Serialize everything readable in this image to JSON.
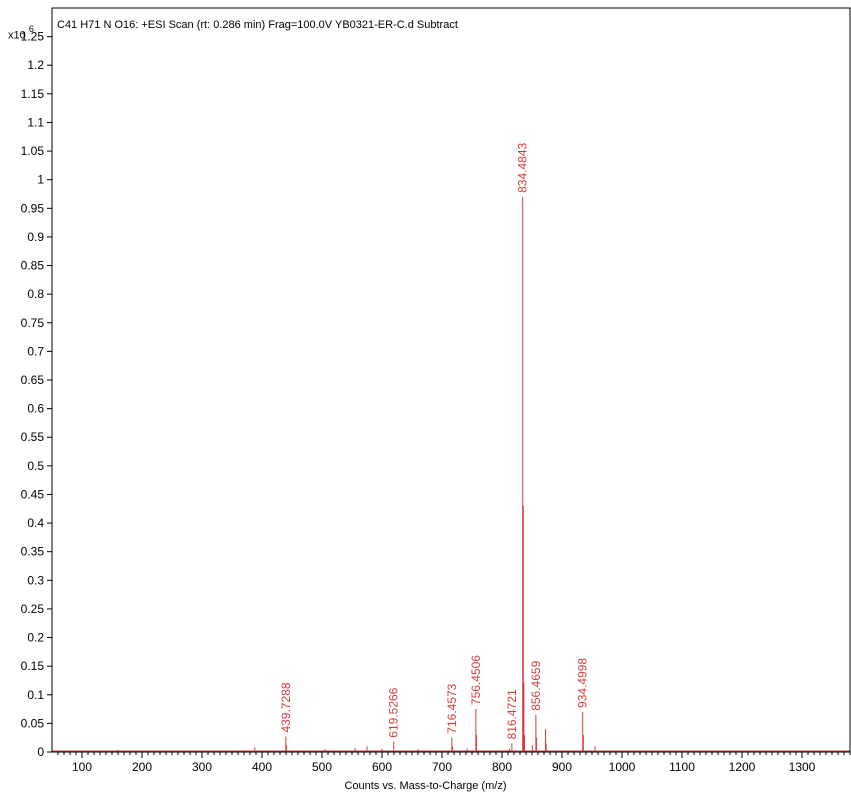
{
  "chart_data": {
    "type": "line",
    "title": "C41 H71 N O16: +ESI Scan (rt: 0.286 min) Frag=100.0V YB0321-ER-C.d  Subtract",
    "y_multiplier": {
      "base": "x10",
      "exponent": "6"
    },
    "xlabel": "Counts vs. Mass-to-Charge (m/z)",
    "ylabel": "",
    "xlim": [
      50,
      1380
    ],
    "ylim": [
      0,
      1.3
    ],
    "x_ticks": [
      100,
      200,
      300,
      400,
      500,
      600,
      700,
      800,
      900,
      1000,
      1100,
      1200,
      1300
    ],
    "y_ticks": [
      "0",
      "0.05",
      "0.1",
      "0.15",
      "0.2",
      "0.25",
      "0.3",
      "0.35",
      "0.4",
      "0.45",
      "0.5",
      "0.55",
      "0.6",
      "0.65",
      "0.7",
      "0.75",
      "0.8",
      "0.85",
      "0.9",
      "0.95",
      "1",
      "1.05",
      "1.1",
      "1.15",
      "1.2",
      "1.25"
    ],
    "y_tick_values": [
      0,
      0.05,
      0.1,
      0.15,
      0.2,
      0.25,
      0.3,
      0.35,
      0.4,
      0.45,
      0.5,
      0.55,
      0.6,
      0.65,
      0.7,
      0.75,
      0.8,
      0.85,
      0.9,
      0.95,
      1,
      1.05,
      1.1,
      1.15,
      1.2,
      1.25
    ],
    "grid": false,
    "series_color": "#d43c3c",
    "labeled_peaks": [
      {
        "mz": 439.7288,
        "intensity": 0.027,
        "label": "439.7288"
      },
      {
        "mz": 619.5266,
        "intensity": 0.018,
        "label": "619.5266"
      },
      {
        "mz": 716.4573,
        "intensity": 0.025,
        "label": "716.4573"
      },
      {
        "mz": 756.4506,
        "intensity": 0.075,
        "label": "756.4506"
      },
      {
        "mz": 816.4721,
        "intensity": 0.015,
        "label": "816.4721"
      },
      {
        "mz": 834.4843,
        "intensity": 0.97,
        "label": "834.4843"
      },
      {
        "mz": 856.4659,
        "intensity": 0.065,
        "label": "856.4659"
      },
      {
        "mz": 934.4998,
        "intensity": 0.07,
        "label": "934.4998"
      }
    ],
    "unlabeled_peaks": [
      {
        "mz": 835.49,
        "intensity": 0.43
      },
      {
        "mz": 836.49,
        "intensity": 0.12
      },
      {
        "mz": 837.5,
        "intensity": 0.03
      },
      {
        "mz": 757.45,
        "intensity": 0.03
      },
      {
        "mz": 857.47,
        "intensity": 0.025
      },
      {
        "mz": 872.47,
        "intensity": 0.04
      },
      {
        "mz": 873.47,
        "intensity": 0.015
      },
      {
        "mz": 935.5,
        "intensity": 0.03
      },
      {
        "mz": 850.5,
        "intensity": 0.012
      },
      {
        "mz": 812.47,
        "intensity": 0.006
      },
      {
        "mz": 717.46,
        "intensity": 0.01
      },
      {
        "mz": 440.73,
        "intensity": 0.012
      },
      {
        "mz": 388.0,
        "intensity": 0.008
      },
      {
        "mz": 555.0,
        "intensity": 0.007
      },
      {
        "mz": 575.0,
        "intensity": 0.01
      },
      {
        "mz": 600.0,
        "intensity": 0.006
      },
      {
        "mz": 660.0,
        "intensity": 0.005
      },
      {
        "mz": 742.0,
        "intensity": 0.006
      },
      {
        "mz": 955.0,
        "intensity": 0.01
      },
      {
        "mz": 160.0,
        "intensity": 0.004
      },
      {
        "mz": 230.0,
        "intensity": 0.003
      },
      {
        "mz": 300.0,
        "intensity": 0.002
      },
      {
        "mz": 505.0,
        "intensity": 0.005
      },
      {
        "mz": 1050.0,
        "intensity": 0.002
      },
      {
        "mz": 1150.0,
        "intensity": 0.002
      },
      {
        "mz": 1250.0,
        "intensity": 0.002
      }
    ]
  }
}
